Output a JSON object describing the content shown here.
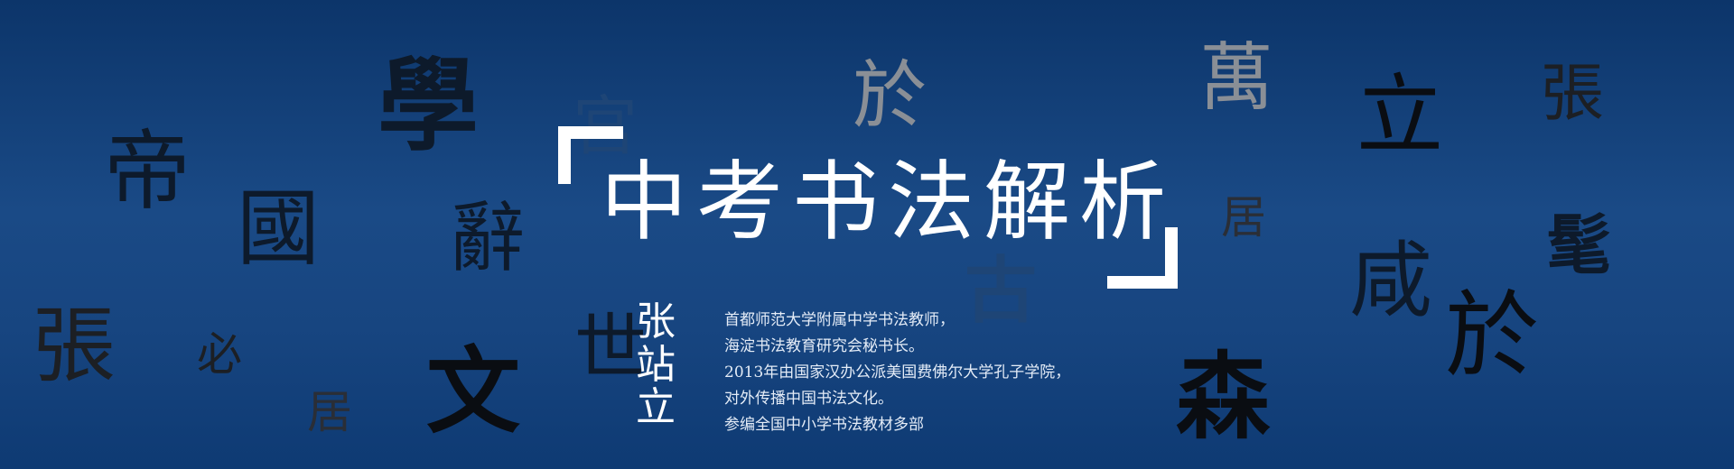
{
  "banner": {
    "title": "中考书法解析",
    "author": "张站立",
    "bio_lines": [
      "首都师范大学附属中学书法教师，",
      "海淀书法教育研究会秘书长。",
      "2013年由国家汉办公派美国费佛尔大学孔子学院，",
      "对外传播中国书法文化。",
      "参编全国中小学书法教材多部"
    ],
    "colors": {
      "background_top": "#0c356a",
      "background_mid": "#1a4a86",
      "text": "#ffffff",
      "glyph_dark": "#0d1a2b",
      "glyph_gray": "#8a8f96"
    },
    "decorative_glyphs": [
      {
        "char": "帝",
        "color": "#0d1a2b"
      },
      {
        "char": "學",
        "color": "#0d1a2b"
      },
      {
        "char": "國",
        "color": "#0d1a2b"
      },
      {
        "char": "辭",
        "color": "#0d1a2b"
      },
      {
        "char": "張",
        "color": "#1c1f24"
      },
      {
        "char": "必",
        "color": "#1c1f24"
      },
      {
        "char": "居",
        "color": "#2a2e36"
      },
      {
        "char": "文",
        "color": "#0a0d12"
      },
      {
        "char": "宮",
        "color": "#1e4576"
      },
      {
        "char": "世",
        "color": "#0d1a2b"
      },
      {
        "char": "於",
        "color": "#8a8f96"
      },
      {
        "char": "古",
        "color": "#1e4576"
      },
      {
        "char": "萬",
        "color": "#8a8f96"
      },
      {
        "char": "居",
        "color": "#2a2e36"
      },
      {
        "char": "森",
        "color": "#0a0d12"
      },
      {
        "char": "立",
        "color": "#0a0d12"
      },
      {
        "char": "咸",
        "color": "#0d1a2b"
      },
      {
        "char": "於",
        "color": "#0a0d12"
      },
      {
        "char": "張",
        "color": "#1c1f24"
      },
      {
        "char": "髦",
        "color": "#0d1a2b"
      }
    ]
  }
}
